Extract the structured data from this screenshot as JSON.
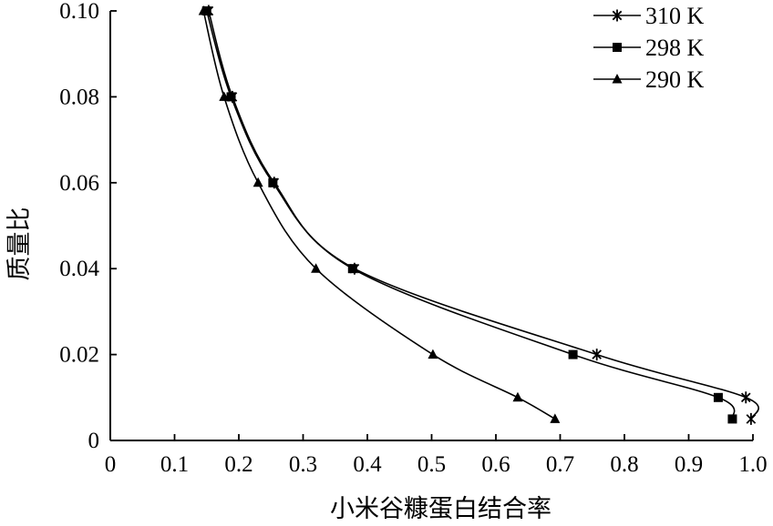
{
  "chart_data": {
    "type": "line",
    "title": "",
    "xlabel": "小米谷糠蛋白结合率",
    "ylabel": "质量比",
    "xlim": [
      0,
      1.0
    ],
    "ylim": [
      0,
      0.1
    ],
    "x_ticks": [
      "0",
      "0.1",
      "0.2",
      "0.3",
      "0.4",
      "0.5",
      "0.6",
      "0.7",
      "0.8",
      "0.9",
      "1.0"
    ],
    "y_ticks": [
      "0",
      "0.02",
      "0.04",
      "0.06",
      "0.08",
      "0.10"
    ],
    "grid": false,
    "legend_position": "top-right",
    "series": [
      {
        "name": "310 K",
        "marker": "star",
        "color": "#000000",
        "points": [
          [
            0.153,
            0.1
          ],
          [
            0.19,
            0.08
          ],
          [
            0.255,
            0.06
          ],
          [
            0.38,
            0.04
          ],
          [
            0.757,
            0.02
          ],
          [
            0.989,
            0.01
          ],
          [
            0.997,
            0.005
          ]
        ]
      },
      {
        "name": "298 K",
        "marker": "square",
        "color": "#000000",
        "points": [
          [
            0.15,
            0.1
          ],
          [
            0.188,
            0.08
          ],
          [
            0.253,
            0.06
          ],
          [
            0.377,
            0.04
          ],
          [
            0.72,
            0.02
          ],
          [
            0.946,
            0.01
          ],
          [
            0.968,
            0.005
          ]
        ]
      },
      {
        "name": "290 K",
        "marker": "triangle",
        "color": "#000000",
        "points": [
          [
            0.145,
            0.1
          ],
          [
            0.177,
            0.08
          ],
          [
            0.23,
            0.06
          ],
          [
            0.32,
            0.04
          ],
          [
            0.502,
            0.02
          ],
          [
            0.634,
            0.01
          ],
          [
            0.692,
            0.005
          ]
        ]
      }
    ]
  }
}
